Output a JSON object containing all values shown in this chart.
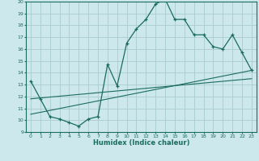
{
  "xlabel": "Humidex (Indice chaleur)",
  "bg_color": "#cde8ec",
  "grid_color": "#aacccc",
  "line_color": "#1a6b60",
  "xlim": [
    -0.5,
    23.5
  ],
  "ylim": [
    9,
    20
  ],
  "xticks": [
    0,
    1,
    2,
    3,
    4,
    5,
    6,
    7,
    8,
    9,
    10,
    11,
    12,
    13,
    14,
    15,
    16,
    17,
    18,
    19,
    20,
    21,
    22,
    23
  ],
  "yticks": [
    9,
    10,
    11,
    12,
    13,
    14,
    15,
    16,
    17,
    18,
    19,
    20
  ],
  "line1_x": [
    0,
    1,
    2,
    3,
    4,
    5,
    6,
    7,
    8,
    9,
    10,
    11,
    12,
    13,
    14,
    15,
    16,
    17,
    18,
    19,
    20,
    21,
    22,
    23
  ],
  "line1_y": [
    13.3,
    11.8,
    10.3,
    10.1,
    9.8,
    9.5,
    10.1,
    10.3,
    14.7,
    12.9,
    16.5,
    17.7,
    18.5,
    19.8,
    20.2,
    18.5,
    18.5,
    17.2,
    17.2,
    16.2,
    16.0,
    17.2,
    15.7,
    14.2
  ],
  "line2_x": [
    0,
    23
  ],
  "line2_y": [
    10.5,
    14.2
  ],
  "line3_x": [
    0,
    23
  ],
  "line3_y": [
    11.8,
    13.5
  ]
}
